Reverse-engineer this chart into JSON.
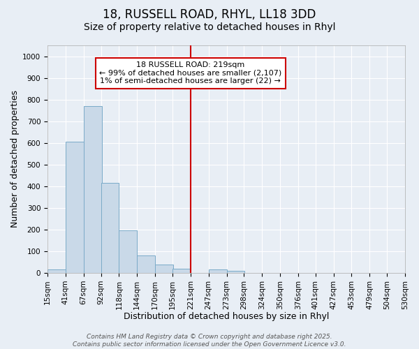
{
  "title1": "18, RUSSELL ROAD, RHYL, LL18 3DD",
  "title2": "Size of property relative to detached houses in Rhyl",
  "xlabel": "Distribution of detached houses by size in Rhyl",
  "ylabel": "Number of detached properties",
  "bin_labels": [
    "15sqm",
    "41sqm",
    "67sqm",
    "92sqm",
    "118sqm",
    "144sqm",
    "170sqm",
    "195sqm",
    "221sqm",
    "247sqm",
    "273sqm",
    "298sqm",
    "324sqm",
    "350sqm",
    "376sqm",
    "401sqm",
    "427sqm",
    "453sqm",
    "479sqm",
    "504sqm",
    "530sqm"
  ],
  "bin_edges": [
    15,
    41,
    67,
    92,
    118,
    144,
    170,
    195,
    221,
    247,
    273,
    298,
    324,
    350,
    376,
    401,
    427,
    453,
    479,
    504,
    530
  ],
  "bar_heights": [
    15,
    605,
    770,
    415,
    195,
    80,
    40,
    20,
    0,
    15,
    10,
    0,
    0,
    0,
    0,
    0,
    0,
    0,
    0,
    0
  ],
  "bar_color": "#c9d9e8",
  "bar_edge_color": "#7aaac8",
  "bg_color": "#e8eef5",
  "plot_bg_color": "#e8eef5",
  "grid_color": "#ffffff",
  "vline_x": 221,
  "vline_color": "#cc0000",
  "annotation_text": "18 RUSSELL ROAD: 219sqm\n← 99% of detached houses are smaller (2,107)\n1% of semi-detached houses are larger (22) →",
  "annotation_box_color": "#cc0000",
  "ylim": [
    0,
    1050
  ],
  "yticks": [
    0,
    100,
    200,
    300,
    400,
    500,
    600,
    700,
    800,
    900,
    1000
  ],
  "footer": "Contains HM Land Registry data © Crown copyright and database right 2025.\nContains public sector information licensed under the Open Government Licence v3.0.",
  "title1_fontsize": 12,
  "title2_fontsize": 10,
  "xlabel_fontsize": 9,
  "ylabel_fontsize": 9,
  "tick_fontsize": 7.5,
  "annotation_fontsize": 8,
  "footer_fontsize": 6.5
}
